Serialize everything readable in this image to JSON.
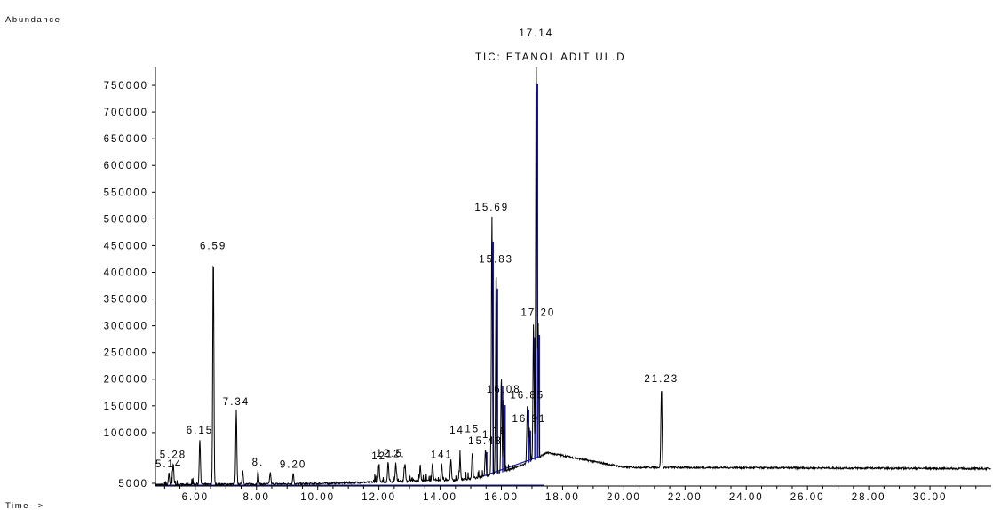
{
  "chart_data": {
    "type": "line",
    "title": "TIC: ETANOL ADIT UL.D",
    "ylabel": "Abundance",
    "xlabel": "Time-->",
    "xlim": [
      4.7,
      32.0
    ],
    "ylim": [
      0,
      785000
    ],
    "x_ticks": [
      6.0,
      8.0,
      10.0,
      12.0,
      14.0,
      16.0,
      18.0,
      20.0,
      22.0,
      24.0,
      26.0,
      28.0,
      30.0
    ],
    "x_tick_labels": [
      "6.00",
      "8.00",
      "10.00",
      "12.00",
      "14.00",
      "16.00",
      "18.00",
      "20.00",
      "22.00",
      "24.00",
      "26.00",
      "28.00",
      "30.00"
    ],
    "y_ticks": [
      5000,
      100000,
      150000,
      200000,
      250000,
      300000,
      350000,
      400000,
      450000,
      500000,
      550000,
      600000,
      650000,
      700000,
      750000
    ],
    "y_tick_labels": [
      "5000",
      "100000",
      "150000",
      "200000",
      "250000",
      "300000",
      "350000",
      "400000",
      "450000",
      "500000",
      "550000",
      "600000",
      "650000",
      "700000",
      "750000"
    ],
    "grid": false,
    "line_color": "#000000",
    "integration_color": "#1a1aa8",
    "peaks": [
      {
        "rt": 5.14,
        "height": 22000,
        "label": "5.14"
      },
      {
        "rt": 5.28,
        "height": 40000,
        "label": "5.28"
      },
      {
        "rt": 6.15,
        "height": 85000,
        "label": "6.15"
      },
      {
        "rt": 6.59,
        "height": 430000,
        "label": "6.59"
      },
      {
        "rt": 7.34,
        "height": 138000,
        "label": "7.34"
      },
      {
        "rt": 7.55,
        "height": 26000,
        "label": ""
      },
      {
        "rt": 8.05,
        "height": 25000,
        "label": "8."
      },
      {
        "rt": 8.45,
        "height": 22000,
        "label": ""
      },
      {
        "rt": 9.2,
        "height": 20000,
        "label": "9.20"
      },
      {
        "rt": 12.0,
        "height": 32000,
        "label": "12"
      },
      {
        "rt": 12.3,
        "height": 38000,
        "label": ""
      },
      {
        "rt": 12.55,
        "height": 36000,
        "label": "12."
      },
      {
        "rt": 12.85,
        "height": 34000,
        "label": ""
      },
      {
        "rt": 13.35,
        "height": 30000,
        "label": ""
      },
      {
        "rt": 13.75,
        "height": 34000,
        "label": ""
      },
      {
        "rt": 14.05,
        "height": 32000,
        "label": "141"
      },
      {
        "rt": 14.35,
        "height": 38000,
        "label": ""
      },
      {
        "rt": 14.65,
        "height": 42000,
        "label": ""
      },
      {
        "rt": 15.05,
        "height": 48000,
        "label": ""
      },
      {
        "rt": 15.48,
        "height": 50000,
        "label": "15.48"
      },
      {
        "rt": 15.69,
        "height": 485000,
        "label": "15.69"
      },
      {
        "rt": 15.83,
        "height": 385000,
        "label": "15.83"
      },
      {
        "rt": 16.0,
        "height": 180000,
        "label": ""
      },
      {
        "rt": 16.08,
        "height": 138000,
        "label": "16.08"
      },
      {
        "rt": 16.85,
        "height": 110000,
        "label": "16.85"
      },
      {
        "rt": 16.91,
        "height": 65000,
        "label": "16.91"
      },
      {
        "rt": 17.05,
        "height": 255000,
        "label": ""
      },
      {
        "rt": 17.14,
        "height": 780000,
        "label": "17.14"
      },
      {
        "rt": 17.2,
        "height": 255000,
        "label": "17.20"
      },
      {
        "rt": 21.23,
        "height": 150000,
        "label": "21.23"
      }
    ],
    "peak_labels_extra": [
      {
        "label": "16",
        "rt": 15.95,
        "y": 65000
      },
      {
        "label": "14",
        "rt": 14.55,
        "y": 80000
      },
      {
        "label": "15",
        "rt": 15.05,
        "y": 80000
      },
      {
        "label": "12.5",
        "rt": 12.35,
        "y": 40000
      },
      {
        "label": "1",
        "rt": 15.5,
        "y": 65000
      }
    ]
  }
}
